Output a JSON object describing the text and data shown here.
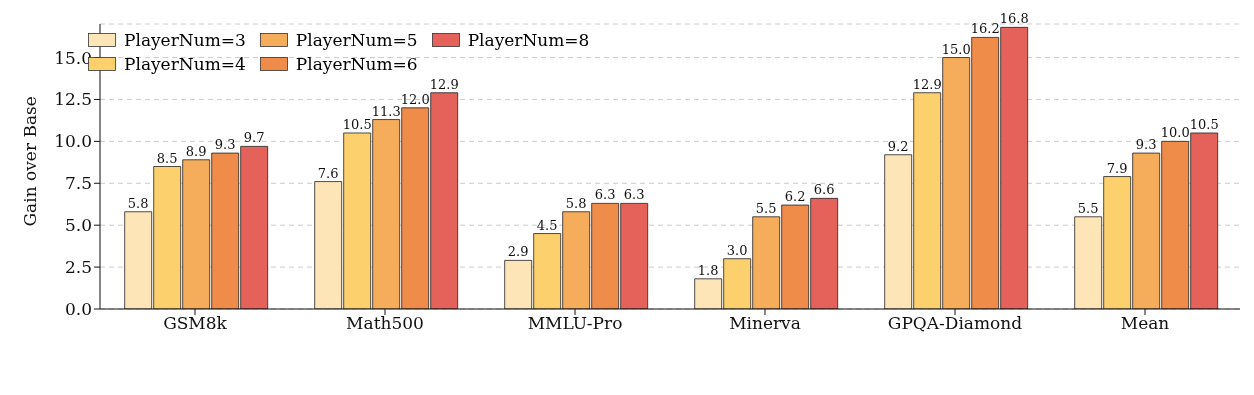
{
  "chart_data": {
    "type": "bar",
    "ylabel": "Gain over Base",
    "categories": [
      "GSM8k",
      "Math500",
      "MMLU-Pro",
      "Minerva",
      "GPQA-Diamond",
      "Mean"
    ],
    "series": [
      {
        "name": "PlayerNum=3",
        "color": "#fde5b8",
        "values": [
          5.8,
          7.6,
          2.9,
          1.8,
          9.2,
          5.5
        ],
        "value_labels": [
          "5.8",
          "7.6",
          "2.9",
          "1.8",
          "9.2",
          "5.5"
        ]
      },
      {
        "name": "PlayerNum=4",
        "color": "#fdd06e",
        "values": [
          8.5,
          10.5,
          4.5,
          3.0,
          12.9,
          7.9
        ],
        "value_labels": [
          "8.5",
          "10.5",
          "4.5",
          "3.0",
          "12.9",
          "7.9"
        ]
      },
      {
        "name": "PlayerNum=5",
        "color": "#f5ad5c",
        "values": [
          8.9,
          11.3,
          5.8,
          5.5,
          15.0,
          9.3
        ],
        "value_labels": [
          "8.9",
          "11.3",
          "5.8",
          "5.5",
          "15.0",
          "9.3"
        ]
      },
      {
        "name": "PlayerNum=6",
        "color": "#ef8c4a",
        "values": [
          9.3,
          12.0,
          6.3,
          6.2,
          16.2,
          10.0
        ],
        "value_labels": [
          "9.3",
          "12.0",
          "6.3",
          "6.2",
          "16.2",
          "10.0"
        ]
      },
      {
        "name": "PlayerNum=8",
        "color": "#e5625a",
        "values": [
          9.7,
          12.9,
          6.3,
          6.6,
          16.8,
          10.5
        ],
        "value_labels": [
          "9.7",
          "12.9",
          "6.3",
          "6.6",
          "16.8",
          "10.5"
        ]
      }
    ],
    "ylim": [
      0,
      17
    ],
    "yticks": [
      {
        "value": 0,
        "label": "0.0"
      },
      {
        "value": 2.5,
        "label": "2.5"
      },
      {
        "value": 5,
        "label": "5.0"
      },
      {
        "value": 7.5,
        "label": "7.5"
      },
      {
        "value": 10,
        "label": "10.0"
      },
      {
        "value": 12.5,
        "label": "12.5"
      },
      {
        "value": 15,
        "label": "15.0"
      }
    ],
    "grid": "y",
    "legend": "top left"
  }
}
